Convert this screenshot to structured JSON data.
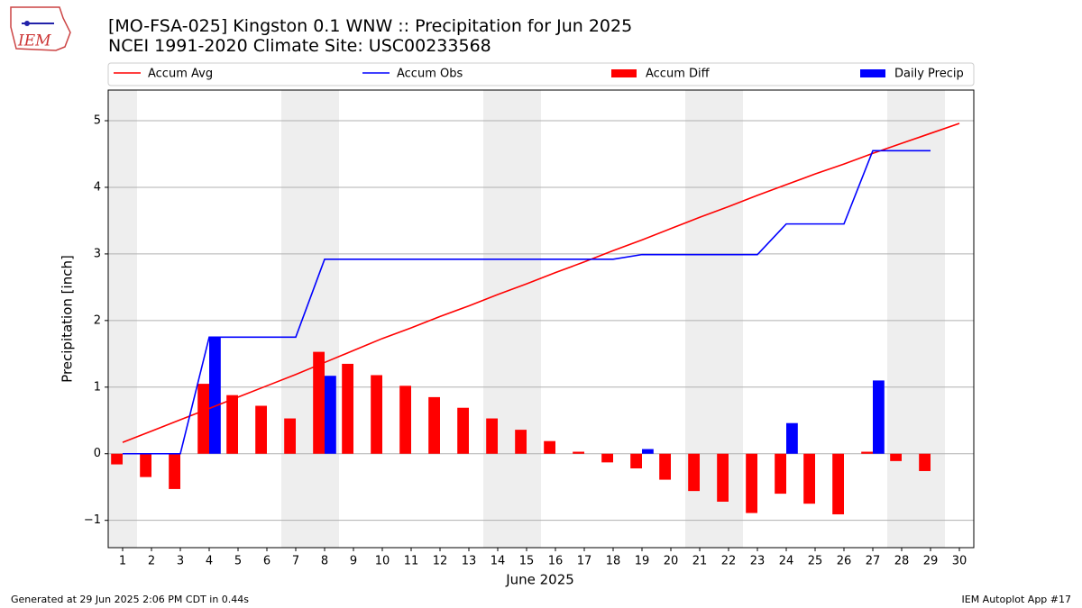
{
  "logo": "IEM",
  "footer_left": "Generated at 29 Jun 2025 2:06 PM CDT in 0.44s",
  "footer_right": "IEM Autoplot App #17",
  "chart_data": {
    "type": "bar_line",
    "title": "[MO-FSA-025] Kingston 0.1 WNW :: Precipitation for Jun 2025",
    "subtitle": "NCEI 1991-2020 Climate Site: USC00233568",
    "x_label": "June 2025",
    "y_label": "Precipitation [inch]",
    "x": [
      1,
      2,
      3,
      4,
      5,
      6,
      7,
      8,
      9,
      10,
      11,
      12,
      13,
      14,
      15,
      16,
      17,
      18,
      19,
      20,
      21,
      22,
      23,
      24,
      25,
      26,
      27,
      28,
      29,
      30
    ],
    "xlim": [
      0.5,
      30.5
    ],
    "xticks": [
      1,
      2,
      3,
      4,
      5,
      6,
      7,
      8,
      9,
      10,
      11,
      12,
      13,
      14,
      15,
      16,
      17,
      18,
      19,
      20,
      21,
      22,
      23,
      24,
      25,
      26,
      27,
      28,
      29,
      30
    ],
    "ylim": [
      -1.41,
      5.46
    ],
    "yticks": [
      {
        "value": -1,
        "label": "−1"
      },
      0,
      1,
      2,
      3,
      4,
      5
    ],
    "grid": true,
    "shaded_ranges": [
      [
        0.5,
        1.5
      ],
      [
        6.5,
        8.5
      ],
      [
        13.5,
        15.5
      ],
      [
        20.5,
        22.5
      ],
      [
        27.5,
        29.5
      ]
    ],
    "shade_color": "#eeeeee",
    "series": [
      {
        "name": "Accum Avg",
        "kind": "line",
        "color": "#ff0000",
        "values": [
          0.17,
          0.34,
          0.51,
          0.68,
          0.85,
          1.02,
          1.19,
          1.37,
          1.55,
          1.73,
          1.89,
          2.06,
          2.22,
          2.39,
          2.55,
          2.72,
          2.88,
          3.05,
          3.21,
          3.38,
          3.55,
          3.71,
          3.88,
          4.04,
          4.2,
          4.35,
          4.51,
          4.66,
          4.81,
          4.96
        ]
      },
      {
        "name": "Accum Obs",
        "kind": "line",
        "color": "#0000ff",
        "values": [
          0,
          0,
          0,
          1.75,
          1.75,
          1.75,
          1.75,
          2.92,
          2.92,
          2.92,
          2.92,
          2.92,
          2.92,
          2.92,
          2.92,
          2.92,
          2.92,
          2.92,
          2.99,
          2.99,
          2.99,
          2.99,
          2.99,
          3.45,
          3.45,
          3.45,
          4.55,
          4.55,
          4.55,
          null
        ]
      },
      {
        "name": "Accum Diff",
        "kind": "bar",
        "offset": -0.2,
        "width": 0.4,
        "color": "#ff0000",
        "values": [
          -0.16,
          -0.35,
          -0.53,
          1.05,
          0.88,
          0.72,
          0.53,
          1.53,
          1.35,
          1.18,
          1.02,
          0.85,
          0.69,
          0.53,
          0.36,
          0.19,
          0.03,
          -0.13,
          -0.22,
          -0.39,
          -0.56,
          -0.72,
          -0.89,
          -0.6,
          -0.75,
          -0.91,
          0.03,
          -0.11,
          -0.26,
          null
        ]
      },
      {
        "name": "Daily Precip",
        "kind": "bar",
        "offset": 0.2,
        "width": 0.4,
        "color": "#0000ff",
        "values": [
          0,
          0,
          0,
          1.75,
          0,
          0,
          0,
          1.17,
          0,
          0,
          0,
          0,
          0,
          0,
          0,
          0,
          0,
          0,
          0.07,
          0,
          0,
          0,
          0,
          0.46,
          0,
          0,
          1.1,
          0,
          0,
          null
        ]
      }
    ]
  }
}
